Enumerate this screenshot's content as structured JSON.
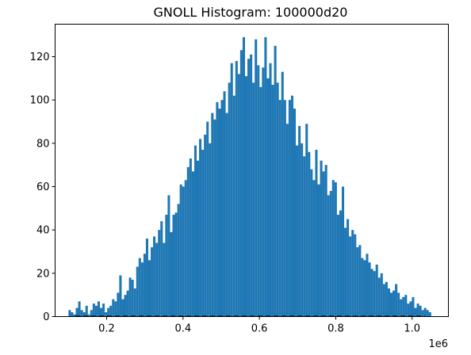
{
  "colors": {
    "bar": "#1f77b4",
    "axis": "#000000",
    "background": "#ffffff"
  },
  "chart_data": {
    "type": "bar",
    "title": "GNOLL Histogram: 100000d20",
    "xlabel": "",
    "ylabel": "",
    "x_offset_label": "1e6",
    "x_scale": 1000000,
    "xlim": [
      0.065,
      1.095
    ],
    "ylim": [
      0,
      135
    ],
    "grid": false,
    "legend": "none",
    "xticks": [
      {
        "value": 0.2,
        "label": "0.2"
      },
      {
        "value": 0.4,
        "label": "0.4"
      },
      {
        "value": 0.6,
        "label": "0.6"
      },
      {
        "value": 0.8,
        "label": "0.8"
      },
      {
        "value": 1.0,
        "label": "1.0"
      }
    ],
    "yticks": [
      {
        "value": 0,
        "label": "0"
      },
      {
        "value": 20,
        "label": "20"
      },
      {
        "value": 40,
        "label": "40"
      },
      {
        "value": 60,
        "label": "60"
      },
      {
        "value": 80,
        "label": "80"
      },
      {
        "value": 100,
        "label": "100"
      },
      {
        "value": 120,
        "label": "120"
      }
    ],
    "bin_start": 0.1,
    "bin_end": 1.05,
    "values": [
      3,
      2,
      1,
      4,
      7,
      3,
      2,
      5,
      1,
      3,
      6,
      5,
      7,
      4,
      6,
      2,
      4,
      5,
      8,
      7,
      11,
      19,
      8,
      10,
      12,
      18,
      17,
      13,
      23,
      27,
      25,
      29,
      36,
      26,
      32,
      37,
      34,
      40,
      44,
      34,
      47,
      56,
      39,
      47,
      48,
      52,
      61,
      60,
      63,
      69,
      73,
      67,
      79,
      72,
      82,
      77,
      84,
      90,
      80,
      94,
      91,
      99,
      96,
      100,
      104,
      94,
      108,
      117,
      102,
      118,
      112,
      123,
      129,
      111,
      119,
      121,
      108,
      128,
      116,
      106,
      115,
      129,
      110,
      117,
      107,
      125,
      108,
      100,
      113,
      100,
      89,
      100,
      102,
      96,
      79,
      88,
      80,
      74,
      89,
      76,
      68,
      63,
      77,
      61,
      72,
      67,
      70,
      56,
      58,
      63,
      62,
      47,
      49,
      60,
      41,
      45,
      37,
      40,
      38,
      32,
      33,
      27,
      26,
      29,
      25,
      22,
      21,
      24,
      18,
      20,
      15,
      16,
      13,
      11,
      12,
      15,
      11,
      8,
      9,
      10,
      6,
      7,
      9,
      4,
      6,
      5,
      3,
      4,
      3,
      2
    ]
  }
}
